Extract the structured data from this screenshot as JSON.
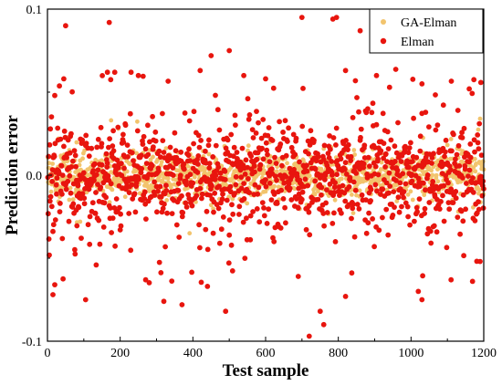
{
  "chart_data": {
    "type": "scatter",
    "xlabel": "Test sample",
    "ylabel": "Prediction error",
    "xlim": [
      0,
      1200
    ],
    "ylim": [
      -0.1,
      0.1
    ],
    "x_ticks": [
      0,
      200,
      400,
      600,
      800,
      1000,
      1200
    ],
    "x_tick_labels": [
      "0",
      "200",
      "400",
      "600",
      "800",
      "1000",
      "1200"
    ],
    "y_ticks": [
      -0.1,
      0.0,
      0.1
    ],
    "y_tick_labels": [
      "-0.1",
      "0.0",
      "0.1"
    ],
    "grid": false,
    "legend": "top-right",
    "series": [
      {
        "name": "GA-Elman",
        "color": "#f2c46d",
        "n_points": 1200,
        "distribution": "x = sample index 1..1200; errors mostly within ±0.01, occasionally up to ±0.035",
        "notable_points": [
          [
            30,
            0.022
          ],
          [
            175,
            0.033
          ],
          [
            90,
            -0.028
          ],
          [
            1190,
            0.034
          ],
          [
            1130,
            -0.022
          ],
          [
            780,
            0.017
          ],
          [
            450,
            -0.018
          ],
          [
            60,
            0.015
          ]
        ]
      },
      {
        "name": "Elman",
        "color": "#e8150e",
        "n_points": 1200,
        "distribution": "x = sample index 1..1200; errors mostly within ±0.03, with outliers reaching about ±0.097",
        "notable_points": [
          [
            50,
            0.09
          ],
          [
            45,
            0.058
          ],
          [
            170,
            0.092
          ],
          [
            165,
            0.062
          ],
          [
            185,
            0.062
          ],
          [
            230,
            0.062
          ],
          [
            250,
            0.06
          ],
          [
            420,
            0.063
          ],
          [
            450,
            0.072
          ],
          [
            500,
            0.075
          ],
          [
            540,
            0.06
          ],
          [
            600,
            0.058
          ],
          [
            700,
            0.095
          ],
          [
            785,
            0.094
          ],
          [
            795,
            0.095
          ],
          [
            820,
            0.063
          ],
          [
            860,
            0.087
          ],
          [
            905,
            0.06
          ],
          [
            1030,
            0.055
          ],
          [
            1160,
            0.052
          ],
          [
            15,
            -0.072
          ],
          [
            20,
            -0.066
          ],
          [
            105,
            -0.075
          ],
          [
            320,
            -0.076
          ],
          [
            370,
            -0.078
          ],
          [
            270,
            -0.063
          ],
          [
            440,
            -0.067
          ],
          [
            490,
            -0.082
          ],
          [
            720,
            -0.097
          ],
          [
            750,
            -0.082
          ],
          [
            760,
            -0.09
          ],
          [
            820,
            -0.073
          ],
          [
            1020,
            -0.07
          ],
          [
            1030,
            -0.075
          ],
          [
            1110,
            -0.063
          ],
          [
            1190,
            -0.052
          ],
          [
            690,
            -0.061
          ]
        ]
      }
    ]
  }
}
